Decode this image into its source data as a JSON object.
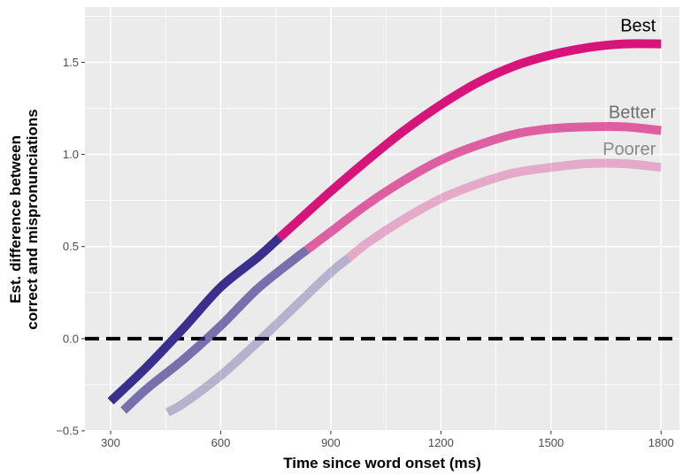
{
  "chart_data": {
    "type": "line",
    "xlabel": "Time since word onset (ms)",
    "ylabel_lines": [
      "Est. difference between",
      "correct and mispronunciations"
    ],
    "xlim": [
      230,
      1850
    ],
    "ylim": [
      -0.5,
      1.8
    ],
    "x_ticks": [
      300,
      600,
      900,
      1200,
      1500,
      1800
    ],
    "y_ticks": [
      -0.5,
      0.0,
      0.5,
      1.0,
      1.5
    ],
    "x_tick_labels": [
      "300",
      "600",
      "900",
      "1200",
      "1500",
      "1800"
    ],
    "y_tick_labels": [
      "−0.5",
      "0.0",
      "0.5",
      "1.0",
      "1.5"
    ],
    "grid": true,
    "reference_line": {
      "y": 0,
      "style": "dashed",
      "color": "#000000"
    },
    "colors": {
      "panel_background": "#ebebeb",
      "gridline": "#ffffff",
      "below_threshold": "#3b2e8c",
      "above_threshold": "#d6147a"
    },
    "series": [
      {
        "name": "Best",
        "color_on": "#d6147a",
        "color_off": "#3b2e8c",
        "opacity": 1.0,
        "label_color": "#000000",
        "threshold_x": 760,
        "points": [
          [
            300,
            -0.34
          ],
          [
            400,
            -0.15
          ],
          [
            500,
            0.06
          ],
          [
            600,
            0.28
          ],
          [
            700,
            0.44
          ],
          [
            800,
            0.62
          ],
          [
            900,
            0.8
          ],
          [
            1000,
            0.97
          ],
          [
            1100,
            1.13
          ],
          [
            1200,
            1.27
          ],
          [
            1300,
            1.39
          ],
          [
            1400,
            1.48
          ],
          [
            1500,
            1.54
          ],
          [
            1600,
            1.58
          ],
          [
            1700,
            1.6
          ],
          [
            1800,
            1.6
          ]
        ]
      },
      {
        "name": "Better",
        "color_on": "#d6147a",
        "color_off": "#3b2e8c",
        "opacity": 0.65,
        "label_color": "#6e6e6e",
        "threshold_x": 835,
        "points": [
          [
            335,
            -0.39
          ],
          [
            400,
            -0.27
          ],
          [
            500,
            -0.11
          ],
          [
            600,
            0.07
          ],
          [
            700,
            0.27
          ],
          [
            800,
            0.43
          ],
          [
            900,
            0.58
          ],
          [
            1000,
            0.73
          ],
          [
            1100,
            0.86
          ],
          [
            1200,
            0.97
          ],
          [
            1300,
            1.05
          ],
          [
            1400,
            1.11
          ],
          [
            1500,
            1.14
          ],
          [
            1600,
            1.15
          ],
          [
            1700,
            1.15
          ],
          [
            1800,
            1.13
          ]
        ]
      },
      {
        "name": "Poorer",
        "color_on": "#d6147a",
        "color_off": "#3b2e8c",
        "opacity": 0.3,
        "label_color": "#8a8a8a",
        "threshold_x": 950,
        "points": [
          [
            455,
            -0.4
          ],
          [
            500,
            -0.35
          ],
          [
            600,
            -0.2
          ],
          [
            700,
            -0.02
          ],
          [
            800,
            0.17
          ],
          [
            900,
            0.36
          ],
          [
            1000,
            0.52
          ],
          [
            1100,
            0.65
          ],
          [
            1200,
            0.76
          ],
          [
            1300,
            0.84
          ],
          [
            1400,
            0.9
          ],
          [
            1500,
            0.93
          ],
          [
            1600,
            0.95
          ],
          [
            1700,
            0.95
          ],
          [
            1800,
            0.93
          ]
        ]
      }
    ]
  }
}
